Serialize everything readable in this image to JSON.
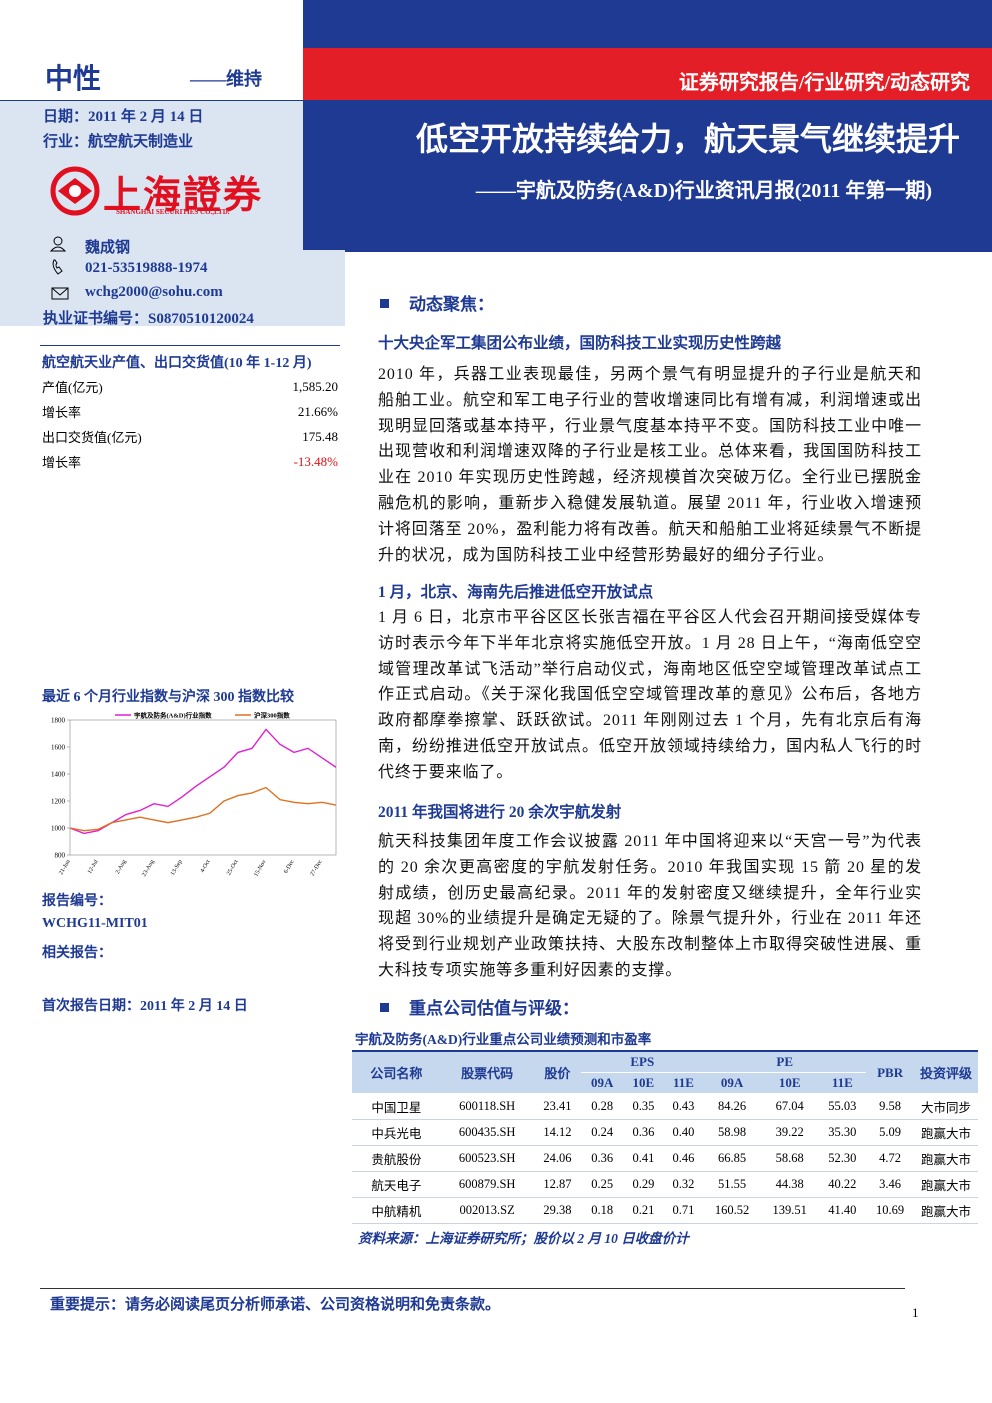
{
  "header": {
    "rating": "中性",
    "rating_change": "——维持",
    "date": "日期：2011 年 2 月 14 日",
    "industry": "行业：航空航天制造业",
    "category": "证券研究报告/行业研究/动态研究",
    "title": "低空开放持续给力，航天景气继续提升",
    "subtitle": "——宇航及防务(A&D)行业资讯月报(2011 年第一期)"
  },
  "logo": {
    "name": "上海證券",
    "name_en": "SHANGHAI SECURITIES CO.,LTD."
  },
  "analyst": {
    "name": "魏成钢",
    "phone": "021-53519888-1974",
    "email": "wchg2000@sohu.com",
    "license": "执业证书编号：S0870510120024"
  },
  "output_table": {
    "title": "航空航天业产值、出口交货值(10 年 1-12 月)",
    "rows": [
      [
        "产值(亿元)",
        "1,585.20"
      ],
      [
        "增长率",
        "21.66%"
      ],
      [
        "出口交货值(亿元)",
        "175.48"
      ],
      [
        "增长率",
        "-13.48%"
      ]
    ]
  },
  "chart_data": {
    "type": "line",
    "title": "最近 6 个月行业指数与沪深 300 指数比较",
    "categories": [
      "21-Jun",
      null,
      "12-Jul",
      null,
      "2-Aug",
      null,
      "23-Aug",
      null,
      "13-Sep",
      null,
      "4-Oct",
      null,
      "25-Oct",
      null,
      "15-Nov",
      null,
      "6-Dec",
      null,
      "27-Dec",
      null
    ],
    "series": [
      {
        "name": "宇航及防务(A&D)行业指数",
        "color": "#e020d0",
        "values": [
          1000,
          960,
          980,
          1040,
          1100,
          1130,
          1180,
          1160,
          1230,
          1310,
          1380,
          1450,
          1560,
          1590,
          1730,
          1620,
          1560,
          1590,
          1520,
          1450
        ]
      },
      {
        "name": "沪深300指数",
        "color": "#e07020",
        "values": [
          1000,
          980,
          990,
          1040,
          1060,
          1080,
          1060,
          1040,
          1060,
          1080,
          1110,
          1200,
          1240,
          1260,
          1300,
          1210,
          1190,
          1180,
          1190,
          1170
        ]
      }
    ],
    "ylim": [
      800,
      1800
    ],
    "yticks": [
      800,
      1000,
      1200,
      1400,
      1600,
      1800
    ],
    "grid": false,
    "legend": "top"
  },
  "report_info": {
    "number_label": "报告编号：",
    "number": "WCHG11-MIT01",
    "related_label": "相关报告：",
    "first_date": "首次报告日期：2011 年 2 月 14 日"
  },
  "focus": {
    "heading": "动态聚焦：",
    "sections": [
      {
        "title": "十大央企军工集团公布业绩，国防科技工业实现历史性跨越",
        "text": "2010 年，兵器工业表现最佳，另两个景气有明显提升的子行业是航天和船舶工业。航空和军工电子行业的营收增速同比有增有减，利润增速或出现明显回落或基本持平，行业景气度基本持平不变。国防科技工业中唯一出现营收和利润增速双降的子行业是核工业。总体来看，我国国防科技工业在 2010 年实现历史性跨越，经济规模首次突破万亿。全行业已摆脱金融危机的影响，重新步入稳健发展轨道。展望 2011 年，行业收入增速预计将回落至 20%，盈利能力将有改善。航天和船舶工业将延续景气不断提升的状况，成为国防科技工业中经营形势最好的细分子行业。"
      },
      {
        "title": "1 月，北京、海南先后推进低空开放试点",
        "text": "1 月 6 日，北京市平谷区区长张吉福在平谷区人代会召开期间接受媒体专访时表示今年下半年北京将实施低空开放。1 月 28 日上午，“海南低空空域管理改革试飞活动”举行启动仪式，海南地区低空空域管理改革试点工作正式启动。《关于深化我国低空空域管理改革的意见》公布后，各地方政府都摩拳擦掌、跃跃欲试。2011 年刚刚过去 1 个月，先有北京后有海南，纷纷推进低空开放试点。低空开放领域持续给力，国内私人飞行的时代终于要来临了。"
      },
      {
        "title": "2011 年我国将进行 20 余次宇航发射",
        "text": "航天科技集团年度工作会议披露 2011 年中国将迎来以“天宫一号”为代表的 20 余次更高密度的宇航发射任务。2010 年我国实现 15 箭 20 星的发射成绩，创历史最高纪录。2011 年的发射密度又继续提升，全年行业实现超 30%的业绩提升是确定无疑的了。除景气提升外，行业在 2011 年还将受到行业规划产业政策扶持、大股东改制整体上市取得突破性进展、重大科技专项实施等多重利好因素的支撑。"
      }
    ]
  },
  "valuation": {
    "heading": "重点公司估值与评级：",
    "table_title": "宇航及防务(A&D)行业重点公司业绩预测和市盈率",
    "columns": [
      "公司名称",
      "股票代码",
      "股价",
      "EPS",
      "PE",
      "PBR",
      "投资评级"
    ],
    "subcolumns": [
      "09A",
      "10E",
      "11E"
    ],
    "rows": [
      [
        "中国卫星",
        "600118.SH",
        "23.41",
        "0.28",
        "0.35",
        "0.43",
        "84.26",
        "67.04",
        "55.03",
        "9.58",
        "大市同步"
      ],
      [
        "中兵光电",
        "600435.SH",
        "14.12",
        "0.24",
        "0.36",
        "0.40",
        "58.98",
        "39.22",
        "35.30",
        "5.09",
        "跑赢大市"
      ],
      [
        "贵航股份",
        "600523.SH",
        "24.06",
        "0.36",
        "0.41",
        "0.46",
        "66.85",
        "58.68",
        "52.30",
        "4.72",
        "跑赢大市"
      ],
      [
        "航天电子",
        "600879.SH",
        "12.87",
        "0.25",
        "0.29",
        "0.32",
        "51.55",
        "44.38",
        "40.22",
        "3.46",
        "跑赢大市"
      ],
      [
        "中航精机",
        "002013.SZ",
        "29.38",
        "0.18",
        "0.21",
        "0.71",
        "160.52",
        "139.51",
        "41.40",
        "10.69",
        "跑赢大市"
      ]
    ],
    "source": "资料来源：上海证券研究所；股价以 2 月 10 日收盘价计"
  },
  "footer": {
    "notice": "重要提示：请务必阅读尾页分析师承诺、公司资格说明和免责条款。",
    "page": "1"
  }
}
